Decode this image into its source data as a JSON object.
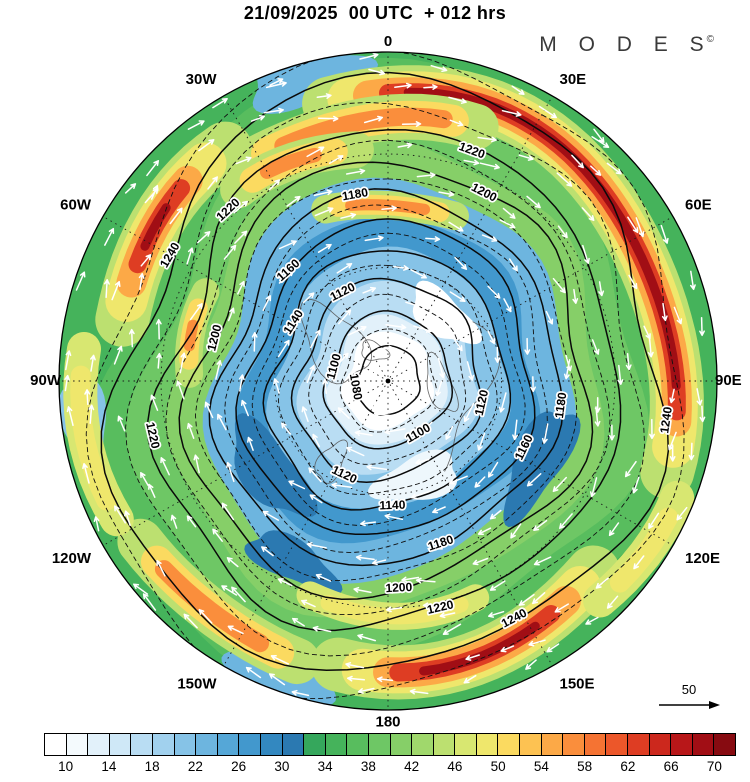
{
  "header": {
    "title": "21/09/2025  00 UTC  + 012 hrs",
    "brand": "M O D E S",
    "brand_mark": "©"
  },
  "map": {
    "compass_labels": [
      {
        "label": "0",
        "angle": 0
      },
      {
        "label": "30E",
        "angle": 30
      },
      {
        "label": "60E",
        "angle": 60
      },
      {
        "label": "90E",
        "angle": 90
      },
      {
        "label": "120E",
        "angle": 120
      },
      {
        "label": "150E",
        "angle": 150
      },
      {
        "label": "180",
        "angle": 180
      },
      {
        "label": "150W",
        "angle": 210
      },
      {
        "label": "120W",
        "angle": 240
      },
      {
        "label": "90W",
        "angle": 270
      },
      {
        "label": "60W",
        "angle": 300
      },
      {
        "label": "30W",
        "angle": 330
      }
    ],
    "contours": [
      {
        "value": "1080",
        "rf": 0.1,
        "label_angles": [
          260
        ]
      },
      {
        "value": "1100",
        "rf": 0.195,
        "label_angles": [
          285,
          150
        ]
      },
      {
        "value": "1120",
        "rf": 0.29,
        "label_angles": [
          333,
          205,
          103
        ]
      },
      {
        "value": "1140",
        "rf": 0.375,
        "label_angles": [
          302,
          178
        ]
      },
      {
        "value": "1160",
        "rf": 0.455,
        "label_angles": [
          318,
          116
        ]
      },
      {
        "value": "1180",
        "rf": 0.535,
        "label_angles": [
          350,
          162,
          98
        ]
      },
      {
        "value": "1200",
        "rf": 0.625,
        "label_angles": [
          27,
          284,
          177
        ]
      },
      {
        "value": "1220",
        "rf": 0.72,
        "label_angles": [
          20,
          317,
          257,
          167
        ]
      },
      {
        "value": "1240",
        "rf": 0.86,
        "label_angles": [
          300,
          98,
          152
        ]
      }
    ]
  },
  "colorbar": {
    "min": 8,
    "max": 72,
    "step": 2,
    "ticks": [
      10,
      14,
      18,
      22,
      26,
      30,
      34,
      38,
      42,
      46,
      50,
      54,
      58,
      62,
      66,
      70
    ],
    "colors": [
      "#ffffff",
      "#f4fafd",
      "#e2f1fa",
      "#cfe8f7",
      "#b9ddf3",
      "#a1d1ee",
      "#86c3e7",
      "#6db5df",
      "#55a7d7",
      "#4298cd",
      "#3388c0",
      "#2b79b1",
      "#35a75c",
      "#45b35b",
      "#58bd5e",
      "#6ec765",
      "#86cf68",
      "#a0d86c",
      "#bce070",
      "#d8e771",
      "#efe76c",
      "#fbda60",
      "#fdc252",
      "#fca947",
      "#fa8e3c",
      "#f57333",
      "#ec572a",
      "#de3d23",
      "#cc281d",
      "#b81719",
      "#a10e15",
      "#870b11"
    ]
  },
  "scale_arrow": {
    "label": "50"
  },
  "chart_data": {
    "type": "heatmap",
    "title": "21/09/2025 00 UTC + 012 hrs",
    "brand": "MODES©",
    "projection": "north-polar-stereographic",
    "colorbar_ticks": [
      10,
      14,
      18,
      22,
      26,
      30,
      34,
      38,
      42,
      46,
      50,
      54,
      58,
      62,
      66,
      70
    ],
    "colorbar_range": [
      8,
      72
    ],
    "colorbar_step": 2,
    "contour_levels": [
      1080,
      1100,
      1120,
      1140,
      1160,
      1180,
      1200,
      1220,
      1240
    ],
    "contour_interval": 20,
    "meridian_labels": [
      "0",
      "30E",
      "60E",
      "90E",
      "120E",
      "150E",
      "180",
      "150W",
      "120W",
      "90W",
      "60W",
      "30W"
    ],
    "reference_arrow_value": 50,
    "legend_position": "bottom",
    "overlays": [
      "filled wind-speed shading",
      "geopotential-height contours",
      "white streamline arrows",
      "dotted graticule"
    ]
  }
}
